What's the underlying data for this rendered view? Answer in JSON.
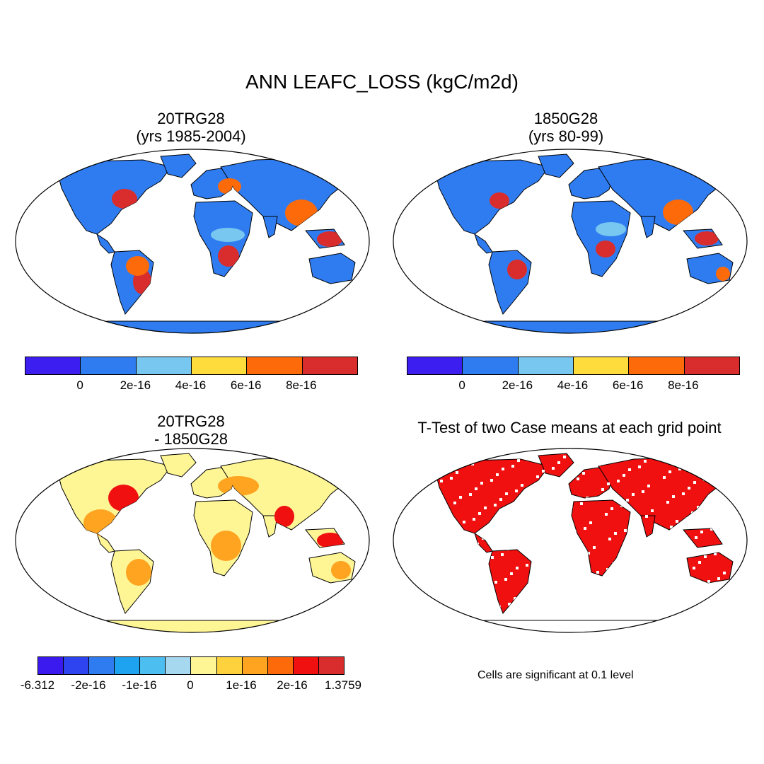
{
  "title": "ANN LEAFC_LOSS (kgC/m2d)",
  "panels": {
    "top_left": {
      "title_line1": "20TRG28",
      "title_line2": "(yrs 1985-2004)"
    },
    "top_right": {
      "title_line1": "1850G28",
      "title_line2": "(yrs 80-99)"
    },
    "bottom_left": {
      "title_line1": "20TRG28",
      "title_line2": "- 1850G28"
    },
    "bottom_right": {
      "title": "T-Test of two Case means at each grid point",
      "note": "Cells are significant at 0.1 level"
    }
  },
  "colorbar_top": {
    "colors": [
      "#3d1ef0",
      "#2f7cf0",
      "#78c7f0",
      "#fedc3c",
      "#fd6a0a",
      "#d82d2c"
    ],
    "labels": [
      "0",
      "2e-16",
      "4e-16",
      "6e-16",
      "8e-16"
    ]
  },
  "colorbar_bottom": {
    "colors": [
      "#3b1af0",
      "#2d44f0",
      "#2f7cf0",
      "#1ea3f0",
      "#4cbff0",
      "#a6d8f0",
      "#fef595",
      "#fed23c",
      "#fea420",
      "#fd6a0a",
      "#f01010",
      "#d82d2c"
    ],
    "labels": [
      "-6.312",
      "-2e-16",
      "-1e-16",
      "0",
      "1e-16",
      "2e-16",
      "1.3759"
    ]
  },
  "fills": {
    "top_left": {
      "land": "#2f7cf0",
      "antarctica": "#2f7cf0",
      "hot": "#d82d2c",
      "warm": "#fd6a0a",
      "mild": "#78c7f0"
    },
    "top_right": {
      "land": "#2f7cf0",
      "antarctica": "#2f7cf0",
      "hot": "#d82d2c",
      "warm": "#fd6a0a",
      "mild": "#78c7f0"
    },
    "bottom_left": {
      "land": "#fef595",
      "antarctica": "#fef595",
      "hot": "#f01010",
      "warm": "#fea420",
      "mild": "#fd6a0a"
    },
    "bottom_right": {
      "land": "#f01010",
      "antarctica": "#ffffff",
      "hot": "#f01010",
      "warm": "#f01010",
      "mild": "#ffffff"
    }
  }
}
